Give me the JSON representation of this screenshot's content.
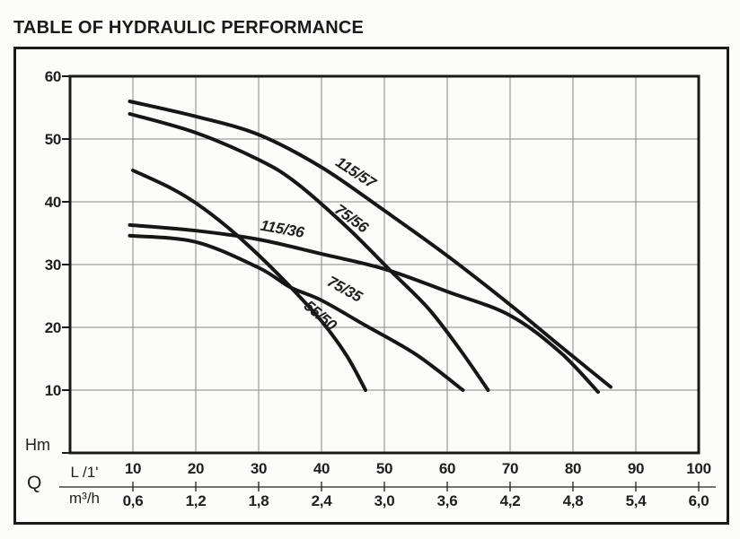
{
  "title": "TABLE OF HYDRAULIC PERFORMANCE",
  "colors": {
    "background": "#fcfcfa",
    "text": "#1f1f1f",
    "frame": "#1a1a1a",
    "grid": "#878787",
    "curve": "#161616"
  },
  "chart_data": {
    "type": "line",
    "title": "TABLE OF HYDRAULIC PERFORMANCE",
    "ylabel": "Hm",
    "flow_symbol": "Q",
    "xlabel_primary": "L /1'",
    "xlabel_secondary": "m³/h",
    "ylim": [
      0,
      60
    ],
    "xlim": [
      0,
      100
    ],
    "grid": true,
    "legend_position": "on-curve",
    "y_ticks": [
      60,
      50,
      40,
      30,
      20,
      10
    ],
    "x_ticks_l_per_min": [
      10,
      20,
      30,
      40,
      50,
      60,
      70,
      80,
      90,
      100
    ],
    "x_ticks_m3_per_h": [
      "0,6",
      "1,2",
      "1,8",
      "2,4",
      "3,0",
      "3,6",
      "4,2",
      "4,8",
      "5,4",
      "6,0"
    ],
    "series": [
      {
        "name": "115/57",
        "label_rotation": 33,
        "label_q": 45,
        "label_h": 44,
        "points": [
          [
            9.5,
            56
          ],
          [
            20,
            53.6
          ],
          [
            30,
            50.7
          ],
          [
            40,
            45.5
          ],
          [
            50,
            38.6
          ],
          [
            60,
            31.4
          ],
          [
            70,
            23.6
          ],
          [
            78,
            17
          ],
          [
            86,
            10.5
          ]
        ]
      },
      {
        "name": "75/56",
        "label_rotation": 36,
        "label_q": 44.3,
        "label_h": 36.7,
        "points": [
          [
            9.5,
            54
          ],
          [
            20,
            51
          ],
          [
            30,
            46.7
          ],
          [
            36,
            43
          ],
          [
            44,
            36
          ],
          [
            51,
            29
          ],
          [
            57,
            23
          ],
          [
            62,
            16.5
          ],
          [
            66.5,
            10
          ]
        ]
      },
      {
        "name": "115/36",
        "label_rotation": 10,
        "label_q": 33.6,
        "label_h": 34.9,
        "points": [
          [
            9.5,
            36.3
          ],
          [
            20,
            35.4
          ],
          [
            30,
            34
          ],
          [
            40,
            31.7
          ],
          [
            50,
            29.3
          ],
          [
            60,
            25.7
          ],
          [
            70,
            21.9
          ],
          [
            78,
            16
          ],
          [
            84,
            9.7
          ]
        ]
      },
      {
        "name": "75/35",
        "label_rotation": 29,
        "label_q": 43.3,
        "label_h": 25.4,
        "points": [
          [
            9.5,
            34.6
          ],
          [
            20,
            33.6
          ],
          [
            30,
            29.5
          ],
          [
            35,
            26.4
          ],
          [
            40,
            24.3
          ],
          [
            47,
            20.3
          ],
          [
            55,
            15.7
          ],
          [
            62.5,
            10
          ]
        ]
      },
      {
        "name": "55/50",
        "label_rotation": 40,
        "label_q": 39.3,
        "label_h": 21.3,
        "points": [
          [
            10,
            45
          ],
          [
            16,
            42.2
          ],
          [
            20,
            39.8
          ],
          [
            25,
            36
          ],
          [
            30,
            31.5
          ],
          [
            35,
            26.5
          ],
          [
            40,
            21
          ],
          [
            44,
            15.5
          ],
          [
            47,
            10
          ]
        ]
      }
    ]
  }
}
